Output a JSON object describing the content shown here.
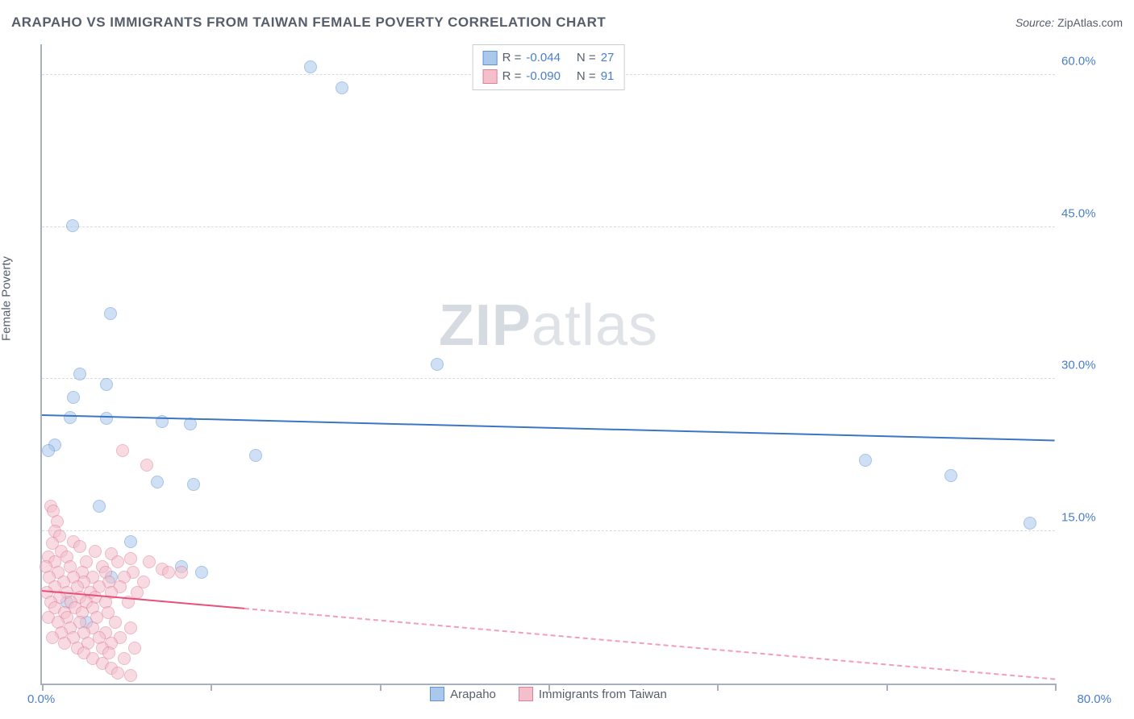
{
  "title": "ARAPAHO VS IMMIGRANTS FROM TAIWAN FEMALE POVERTY CORRELATION CHART",
  "source_label": "Source:",
  "source_value": "ZipAtlas.com",
  "ylabel": "Female Poverty",
  "watermark_strong": "ZIP",
  "watermark_light": "atlas",
  "chart": {
    "type": "scatter",
    "background_color": "#ffffff",
    "grid_color": "#d7dbe1",
    "axis_color": "#a8b0bb",
    "label_text_color": "#555e6a",
    "tick_text_color": "#4a7ec9",
    "xlim": [
      0,
      80
    ],
    "ylim": [
      0,
      63
    ],
    "x_ticks": [
      0,
      13.3,
      26.7,
      40,
      53.3,
      66.7,
      80
    ],
    "x_tick_labels_shown": {
      "0": "0.0%",
      "80": "80.0%"
    },
    "y_gridlines": [
      15,
      30,
      45,
      60
    ],
    "y_tick_labels": {
      "15": "15.0%",
      "30": "30.0%",
      "45": "45.0%",
      "60": "60.0%"
    },
    "marker_radius": 8,
    "marker_opacity": 0.55,
    "series": [
      {
        "name": "Arapaho",
        "fill_color": "#a9c8ec",
        "stroke_color": "#5f93d4",
        "trend_color": "#3a76c5",
        "trend_width": 2.5,
        "trend_dash_after_x": 80,
        "R": "-0.044",
        "N": "27",
        "trend": {
          "y_at_x0": 26.5,
          "y_at_xmax": 24.0
        },
        "points": [
          [
            21.2,
            60.8
          ],
          [
            23.7,
            58.7
          ],
          [
            2.4,
            45.1
          ],
          [
            5.4,
            36.5
          ],
          [
            31.2,
            31.5
          ],
          [
            3.0,
            30.5
          ],
          [
            5.1,
            29.5
          ],
          [
            2.5,
            28.2
          ],
          [
            2.2,
            26.2
          ],
          [
            5.1,
            26.1
          ],
          [
            9.5,
            25.8
          ],
          [
            11.7,
            25.6
          ],
          [
            1.0,
            23.5
          ],
          [
            0.5,
            23.0
          ],
          [
            16.9,
            22.5
          ],
          [
            65.0,
            22.0
          ],
          [
            71.8,
            20.5
          ],
          [
            9.1,
            19.9
          ],
          [
            12.0,
            19.6
          ],
          [
            4.5,
            17.5
          ],
          [
            78.0,
            15.8
          ],
          [
            7.0,
            14.0
          ],
          [
            11.0,
            11.5
          ],
          [
            12.6,
            11.0
          ],
          [
            5.5,
            10.5
          ],
          [
            2.0,
            8.0
          ],
          [
            3.5,
            6.0
          ]
        ]
      },
      {
        "name": "Immigrants from Taiwan",
        "fill_color": "#f3bfcb",
        "stroke_color": "#e07f99",
        "trend_color": "#e84f7a",
        "trend_width": 2,
        "trend_dash_after_x": 16,
        "R": "-0.090",
        "N": "91",
        "trend": {
          "y_at_x0": 9.2,
          "y_at_xmax": 0.5
        },
        "points": [
          [
            6.4,
            23.0
          ],
          [
            8.3,
            21.5
          ],
          [
            0.7,
            17.5
          ],
          [
            0.9,
            17.0
          ],
          [
            1.2,
            16.0
          ],
          [
            1.0,
            15.0
          ],
          [
            1.4,
            14.5
          ],
          [
            2.5,
            14.0
          ],
          [
            0.8,
            13.8
          ],
          [
            3.0,
            13.5
          ],
          [
            1.5,
            13.0
          ],
          [
            4.2,
            13.0
          ],
          [
            5.5,
            12.8
          ],
          [
            0.5,
            12.5
          ],
          [
            2.0,
            12.5
          ],
          [
            7.0,
            12.3
          ],
          [
            1.0,
            12.0
          ],
          [
            3.5,
            12.0
          ],
          [
            6.0,
            12.0
          ],
          [
            8.5,
            12.0
          ],
          [
            0.3,
            11.5
          ],
          [
            2.2,
            11.5
          ],
          [
            4.8,
            11.5
          ],
          [
            9.5,
            11.3
          ],
          [
            1.3,
            11.0
          ],
          [
            3.2,
            11.0
          ],
          [
            5.0,
            11.0
          ],
          [
            7.2,
            11.0
          ],
          [
            10.0,
            11.0
          ],
          [
            11.0,
            11.0
          ],
          [
            0.6,
            10.5
          ],
          [
            2.5,
            10.5
          ],
          [
            4.0,
            10.5
          ],
          [
            6.5,
            10.5
          ],
          [
            1.7,
            10.0
          ],
          [
            3.3,
            10.0
          ],
          [
            5.3,
            10.0
          ],
          [
            8.0,
            10.0
          ],
          [
            1.0,
            9.5
          ],
          [
            2.8,
            9.5
          ],
          [
            4.5,
            9.5
          ],
          [
            6.2,
            9.5
          ],
          [
            0.4,
            9.0
          ],
          [
            2.0,
            9.0
          ],
          [
            3.8,
            9.0
          ],
          [
            5.5,
            9.0
          ],
          [
            7.5,
            9.0
          ],
          [
            1.4,
            8.5
          ],
          [
            3.0,
            8.5
          ],
          [
            4.2,
            8.5
          ],
          [
            0.7,
            8.0
          ],
          [
            2.3,
            8.0
          ],
          [
            3.5,
            8.0
          ],
          [
            5.0,
            8.0
          ],
          [
            6.8,
            8.0
          ],
          [
            1.0,
            7.5
          ],
          [
            2.6,
            7.5
          ],
          [
            4.0,
            7.5
          ],
          [
            1.8,
            7.0
          ],
          [
            3.2,
            7.0
          ],
          [
            5.2,
            7.0
          ],
          [
            0.5,
            6.5
          ],
          [
            2.0,
            6.5
          ],
          [
            4.3,
            6.5
          ],
          [
            1.3,
            6.0
          ],
          [
            3.0,
            6.0
          ],
          [
            5.8,
            6.0
          ],
          [
            2.2,
            5.5
          ],
          [
            4.0,
            5.5
          ],
          [
            7.0,
            5.5
          ],
          [
            1.5,
            5.0
          ],
          [
            3.3,
            5.0
          ],
          [
            5.0,
            5.0
          ],
          [
            0.8,
            4.5
          ],
          [
            2.5,
            4.5
          ],
          [
            4.5,
            4.5
          ],
          [
            6.2,
            4.5
          ],
          [
            1.8,
            4.0
          ],
          [
            3.6,
            4.0
          ],
          [
            5.5,
            4.0
          ],
          [
            2.8,
            3.5
          ],
          [
            4.8,
            3.5
          ],
          [
            7.3,
            3.5
          ],
          [
            3.3,
            3.0
          ],
          [
            5.3,
            3.0
          ],
          [
            4.0,
            2.5
          ],
          [
            6.5,
            2.5
          ],
          [
            4.8,
            2.0
          ],
          [
            5.5,
            1.5
          ],
          [
            6.0,
            1.0
          ],
          [
            7.0,
            0.8
          ]
        ]
      }
    ]
  },
  "legend_top": {
    "R_label": "R =",
    "N_label": "N ="
  },
  "legend_bottom_labels": [
    "Arapaho",
    "Immigrants from Taiwan"
  ]
}
